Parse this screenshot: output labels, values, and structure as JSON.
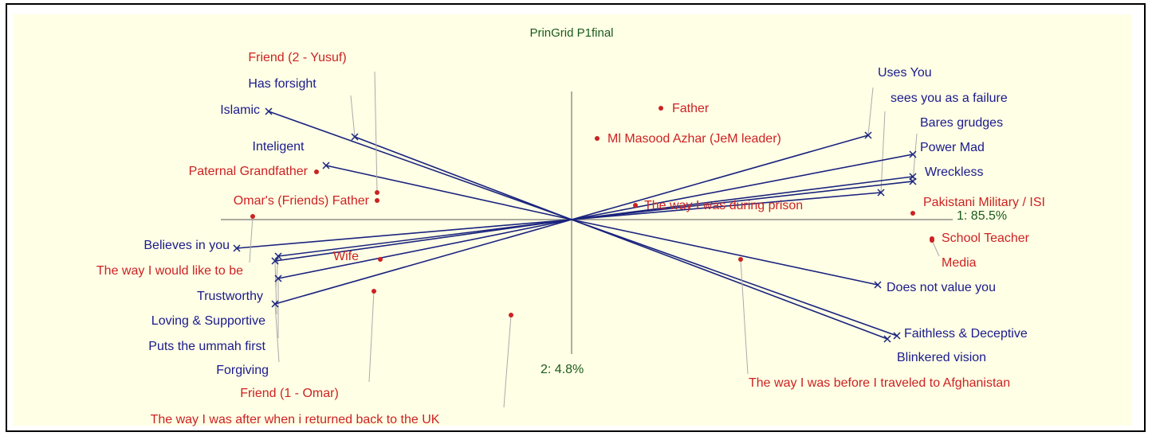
{
  "chart_data": {
    "type": "biplot",
    "title": "PrinGrid P1final",
    "x_axis_label": "1: 85.5%",
    "y_axis_label": "2: 4.8%",
    "xlim": [
      -1.75,
      1.75
    ],
    "ylim": [
      -1.28,
      1.28
    ],
    "elements": {
      "color": "#cc2222",
      "labels": [
        "Father",
        "Ml Masood Azhar (JeM leader)",
        "The way I was during prison",
        "Pakistani Military / ISI",
        "School Teacher",
        "Media",
        "The way I was before I traveled to Afghanistan",
        "Friend (2 - Yusuf)",
        "Paternal Grandfather",
        "Omar's (Friends) Father",
        "Wife",
        "The way I would like to be",
        "Friend (1 - Omar)",
        "The way I was after when i returned back to the UK"
      ],
      "x": [
        0.28,
        0.08,
        0.2,
        1.07,
        1.13,
        1.13,
        0.53,
        -0.61,
        -0.8,
        -0.61,
        -0.6,
        -1.0,
        -0.62,
        -0.19
      ],
      "y": [
        0.7,
        0.51,
        0.09,
        0.04,
        -0.12,
        -0.13,
        -0.25,
        0.17,
        0.3,
        0.12,
        -0.25,
        0.02,
        -0.45,
        -0.6
      ]
    },
    "constructs": {
      "color": "#1a1a8c",
      "line_color": "#1a237e",
      "labels": [
        "Islamic",
        "Has forsight",
        "Inteligent",
        "Believes in you",
        "Trustworthy",
        "Loving & Supportive",
        "Puts the ummah first",
        "Forgiving",
        "Uses You",
        "sees you as a failure",
        "Bares grudges",
        "Power Mad",
        "Wreckless",
        "Does not value you",
        "Faithless & Deceptive",
        "Blinkered vision"
      ],
      "x": [
        -0.95,
        -0.68,
        -0.77,
        -1.05,
        -0.92,
        -0.93,
        -0.92,
        -0.93,
        0.93,
        0.97,
        1.07,
        1.07,
        1.07,
        0.96,
        1.02,
        0.99
      ],
      "y": [
        0.68,
        0.52,
        0.34,
        -0.18,
        -0.23,
        -0.26,
        -0.37,
        -0.53,
        0.53,
        0.17,
        0.24,
        0.41,
        0.27,
        -0.41,
        -0.73,
        -0.75
      ]
    }
  }
}
